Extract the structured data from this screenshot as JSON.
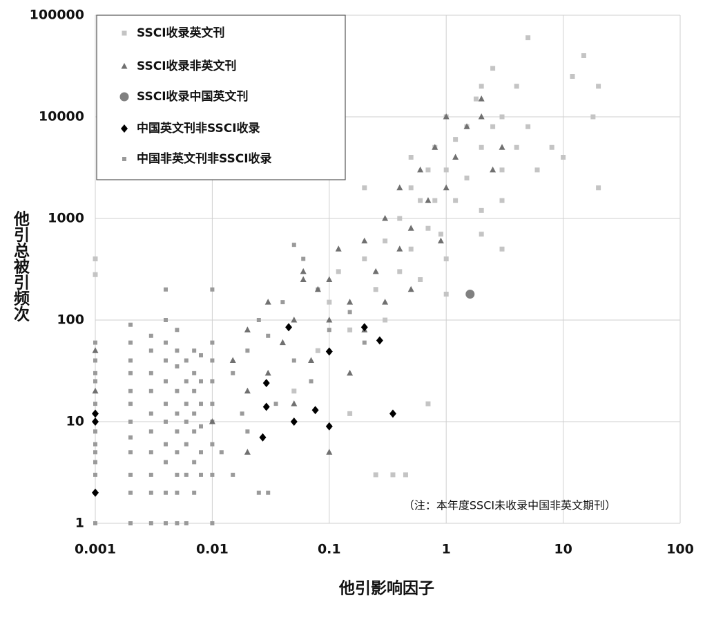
{
  "chart_data": {
    "type": "scatter",
    "x_label": "他引影响因子",
    "y_label": "他引总被引频次",
    "annotation": "（注：本年度SSCI未收录中国非英文期刊）",
    "xlog": true,
    "ylog": true,
    "grid": true,
    "legend": "upper left",
    "xlim": [
      0.001,
      100
    ],
    "ylim": [
      1,
      100000
    ],
    "xticks": [
      0.001,
      0.01,
      0.1,
      1,
      10,
      100
    ],
    "yticks": [
      1,
      10,
      100,
      1000,
      10000,
      100000
    ],
    "series": [
      {
        "name": "SSCI收录英文刊",
        "color": "#c4c4c4",
        "marker": "square",
        "points": [
          [
            0.05,
            20
          ],
          [
            0.08,
            50
          ],
          [
            0.1,
            150
          ],
          [
            0.12,
            300
          ],
          [
            0.15,
            80
          ],
          [
            0.2,
            400
          ],
          [
            0.25,
            200
          ],
          [
            0.3,
            600
          ],
          [
            0.3,
            100
          ],
          [
            0.4,
            1000
          ],
          [
            0.4,
            300
          ],
          [
            0.5,
            2000
          ],
          [
            0.5,
            500
          ],
          [
            0.6,
            1500
          ],
          [
            0.6,
            250
          ],
          [
            0.7,
            3000
          ],
          [
            0.7,
            800
          ],
          [
            0.8,
            5000
          ],
          [
            0.8,
            1500
          ],
          [
            0.9,
            700
          ],
          [
            1,
            10000
          ],
          [
            1,
            3000
          ],
          [
            1,
            400
          ],
          [
            1.2,
            6000
          ],
          [
            1.2,
            1500
          ],
          [
            1.5,
            8000
          ],
          [
            1.5,
            2500
          ],
          [
            1.8,
            15000
          ],
          [
            2,
            20000
          ],
          [
            2,
            5000
          ],
          [
            2,
            1200
          ],
          [
            2.5,
            30000
          ],
          [
            2.5,
            8000
          ],
          [
            3,
            10000
          ],
          [
            3,
            3000
          ],
          [
            3,
            1500
          ],
          [
            4,
            20000
          ],
          [
            4,
            5000
          ],
          [
            5,
            60000
          ],
          [
            5,
            8000
          ],
          [
            6,
            3000
          ],
          [
            8,
            5000
          ],
          [
            10,
            4000
          ],
          [
            12,
            25000
          ],
          [
            15,
            40000
          ],
          [
            18,
            10000
          ],
          [
            20,
            20000
          ],
          [
            20,
            2000
          ],
          [
            0.35,
            3
          ],
          [
            0.45,
            3
          ],
          [
            0.25,
            3
          ],
          [
            0.15,
            12
          ],
          [
            0.2,
            2000
          ],
          [
            0.5,
            4000
          ],
          [
            0.001,
            400
          ],
          [
            0.001,
            280
          ],
          [
            1,
            180
          ],
          [
            2,
            700
          ],
          [
            3,
            500
          ],
          [
            0.7,
            15
          ]
        ]
      },
      {
        "name": "SSCI收录非英文刊",
        "color": "#707070",
        "marker": "triangle",
        "points": [
          [
            0.01,
            10
          ],
          [
            0.015,
            40
          ],
          [
            0.02,
            20
          ],
          [
            0.02,
            80
          ],
          [
            0.03,
            30
          ],
          [
            0.03,
            150
          ],
          [
            0.04,
            60
          ],
          [
            0.05,
            100
          ],
          [
            0.05,
            15
          ],
          [
            0.06,
            300
          ],
          [
            0.07,
            40
          ],
          [
            0.08,
            200
          ],
          [
            0.1,
            100
          ],
          [
            0.1,
            250
          ],
          [
            0.12,
            500
          ],
          [
            0.15,
            150
          ],
          [
            0.15,
            30
          ],
          [
            0.2,
            600
          ],
          [
            0.2,
            80
          ],
          [
            0.25,
            300
          ],
          [
            0.3,
            1000
          ],
          [
            0.3,
            150
          ],
          [
            0.4,
            500
          ],
          [
            0.4,
            2000
          ],
          [
            0.5,
            800
          ],
          [
            0.5,
            200
          ],
          [
            0.6,
            3000
          ],
          [
            0.7,
            1500
          ],
          [
            0.8,
            5000
          ],
          [
            0.9,
            600
          ],
          [
            1,
            2000
          ],
          [
            1,
            10000
          ],
          [
            1.2,
            4000
          ],
          [
            1.5,
            8000
          ],
          [
            2,
            10000
          ],
          [
            2,
            15000
          ],
          [
            2.5,
            3000
          ],
          [
            3,
            5000
          ],
          [
            0.001,
            50
          ],
          [
            0.001,
            20
          ],
          [
            0.1,
            5
          ],
          [
            0.02,
            5
          ],
          [
            0.06,
            250
          ]
        ]
      },
      {
        "name": "SSCI收录中国英文刊",
        "color": "#808080",
        "marker": "circle",
        "points": [
          [
            1.6,
            180
          ]
        ]
      },
      {
        "name": "中国英文刊非SSCI收录",
        "color": "#000000",
        "marker": "diamond",
        "points": [
          [
            0.001,
            2
          ],
          [
            0.001,
            12
          ],
          [
            0.001,
            10
          ],
          [
            0.045,
            85
          ],
          [
            0.029,
            24
          ],
          [
            0.029,
            14
          ],
          [
            0.027,
            7
          ],
          [
            0.05,
            10
          ],
          [
            0.076,
            13
          ],
          [
            0.1,
            49
          ],
          [
            0.1,
            9
          ],
          [
            0.2,
            85
          ],
          [
            0.27,
            63
          ],
          [
            0.35,
            12
          ]
        ]
      },
      {
        "name": "中国非英文刊非SSCI收录",
        "color": "#9a9a9a",
        "marker": "small-square",
        "points": [
          [
            0.001,
            1
          ],
          [
            0.001,
            2
          ],
          [
            0.001,
            3
          ],
          [
            0.001,
            4
          ],
          [
            0.001,
            5
          ],
          [
            0.001,
            6
          ],
          [
            0.001,
            8
          ],
          [
            0.001,
            15
          ],
          [
            0.001,
            25
          ],
          [
            0.001,
            30
          ],
          [
            0.001,
            40
          ],
          [
            0.001,
            60
          ],
          [
            0.002,
            1
          ],
          [
            0.002,
            2
          ],
          [
            0.002,
            3
          ],
          [
            0.002,
            5
          ],
          [
            0.002,
            7
          ],
          [
            0.002,
            10
          ],
          [
            0.002,
            15
          ],
          [
            0.002,
            20
          ],
          [
            0.002,
            30
          ],
          [
            0.002,
            40
          ],
          [
            0.002,
            60
          ],
          [
            0.002,
            90
          ],
          [
            0.003,
            1
          ],
          [
            0.003,
            2
          ],
          [
            0.003,
            3
          ],
          [
            0.003,
            5
          ],
          [
            0.003,
            8
          ],
          [
            0.003,
            12
          ],
          [
            0.003,
            20
          ],
          [
            0.003,
            30
          ],
          [
            0.003,
            50
          ],
          [
            0.003,
            70
          ],
          [
            0.004,
            1
          ],
          [
            0.004,
            2
          ],
          [
            0.004,
            4
          ],
          [
            0.004,
            6
          ],
          [
            0.004,
            10
          ],
          [
            0.004,
            15
          ],
          [
            0.004,
            25
          ],
          [
            0.004,
            40
          ],
          [
            0.004,
            60
          ],
          [
            0.004,
            100
          ],
          [
            0.004,
            200
          ],
          [
            0.005,
            1
          ],
          [
            0.005,
            2
          ],
          [
            0.005,
            3
          ],
          [
            0.005,
            5
          ],
          [
            0.005,
            8
          ],
          [
            0.005,
            12
          ],
          [
            0.005,
            20
          ],
          [
            0.005,
            35
          ],
          [
            0.005,
            50
          ],
          [
            0.005,
            80
          ],
          [
            0.006,
            1
          ],
          [
            0.006,
            3
          ],
          [
            0.006,
            6
          ],
          [
            0.006,
            10
          ],
          [
            0.006,
            15
          ],
          [
            0.006,
            25
          ],
          [
            0.006,
            40
          ],
          [
            0.007,
            2
          ],
          [
            0.007,
            4
          ],
          [
            0.007,
            8
          ],
          [
            0.007,
            12
          ],
          [
            0.007,
            20
          ],
          [
            0.007,
            30
          ],
          [
            0.007,
            50
          ],
          [
            0.008,
            3
          ],
          [
            0.008,
            5
          ],
          [
            0.008,
            9
          ],
          [
            0.008,
            15
          ],
          [
            0.008,
            25
          ],
          [
            0.008,
            45
          ],
          [
            0.01,
            1
          ],
          [
            0.01,
            3
          ],
          [
            0.01,
            6
          ],
          [
            0.01,
            10
          ],
          [
            0.01,
            15
          ],
          [
            0.01,
            25
          ],
          [
            0.01,
            40
          ],
          [
            0.01,
            60
          ],
          [
            0.01,
            200
          ],
          [
            0.015,
            30
          ],
          [
            0.02,
            50
          ],
          [
            0.02,
            8
          ],
          [
            0.025,
            100
          ],
          [
            0.03,
            70
          ],
          [
            0.04,
            150
          ],
          [
            0.05,
            40
          ],
          [
            0.06,
            400
          ],
          [
            0.05,
            550
          ],
          [
            0.08,
            200
          ],
          [
            0.012,
            5
          ],
          [
            0.015,
            3
          ],
          [
            0.03,
            2
          ],
          [
            0.035,
            15
          ],
          [
            0.07,
            25
          ],
          [
            0.1,
            80
          ],
          [
            0.15,
            120
          ],
          [
            0.2,
            60
          ],
          [
            0.025,
            2
          ],
          [
            0.018,
            12
          ]
        ]
      }
    ]
  }
}
